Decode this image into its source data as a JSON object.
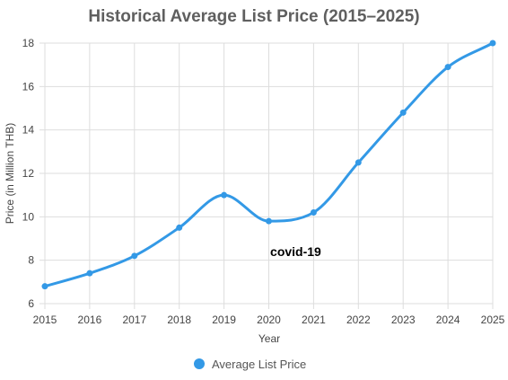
{
  "chart_data": {
    "type": "line",
    "title": "Historical Average List Price (2015–2025)",
    "xlabel": "Year",
    "ylabel": "Price (in Million THB)",
    "x": [
      "2015",
      "2016",
      "2017",
      "2018",
      "2019",
      "2020",
      "2021",
      "2022",
      "2023",
      "2024",
      "2025"
    ],
    "series": [
      {
        "name": "Average List Price",
        "values": [
          6.8,
          7.4,
          8.2,
          9.5,
          11.0,
          9.8,
          10.2,
          12.5,
          14.8,
          16.9,
          18.0
        ]
      }
    ],
    "ylim": [
      6,
      18
    ],
    "yticks": [
      6,
      8,
      10,
      12,
      14,
      16,
      18
    ],
    "grid": true,
    "legend_position": "bottom",
    "annotations": [
      {
        "text": "covid-19",
        "x": "2020.6",
        "y": 8.2
      }
    ],
    "colors": {
      "series": "#3399e6",
      "grid": "#dddddd",
      "title": "#5f5f5f",
      "text": "#444444"
    }
  }
}
